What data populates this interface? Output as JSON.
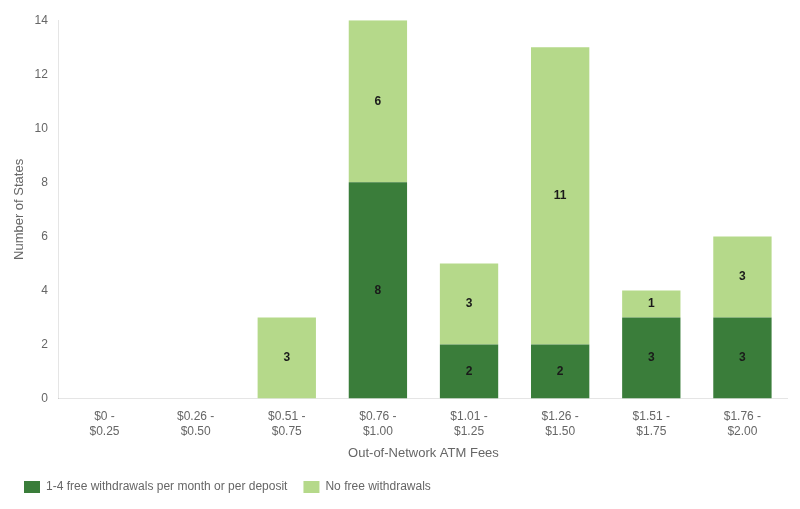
{
  "chart_data": {
    "type": "bar",
    "categories": [
      "$0 -\n$0.25",
      "$0.26 -\n$0.50",
      "$0.51 -\n$0.75",
      "$0.76 -\n$1.00",
      "$1.01 -\n$1.25",
      "$1.26 -\n$1.50",
      "$1.51 -\n$1.75",
      "$1.76 -\n$2.00"
    ],
    "series": [
      {
        "name": "1-4 free withdrawals per month or per deposit",
        "color": "#3a7d3a",
        "values": [
          0,
          0,
          0,
          8,
          2,
          2,
          3,
          3
        ]
      },
      {
        "name": "No free withdrawals",
        "color": "#b5d98a",
        "values": [
          0,
          0,
          3,
          6,
          3,
          11,
          1,
          3
        ]
      }
    ],
    "xlabel": "Out-of-Network ATM Fees",
    "ylabel": "Number of States",
    "ylim": [
      0,
      14
    ],
    "yticks": [
      0,
      2,
      4,
      6,
      8,
      10,
      12,
      14
    ],
    "stacked": true,
    "data_labels": true,
    "grid": false,
    "legend": "bottom"
  }
}
